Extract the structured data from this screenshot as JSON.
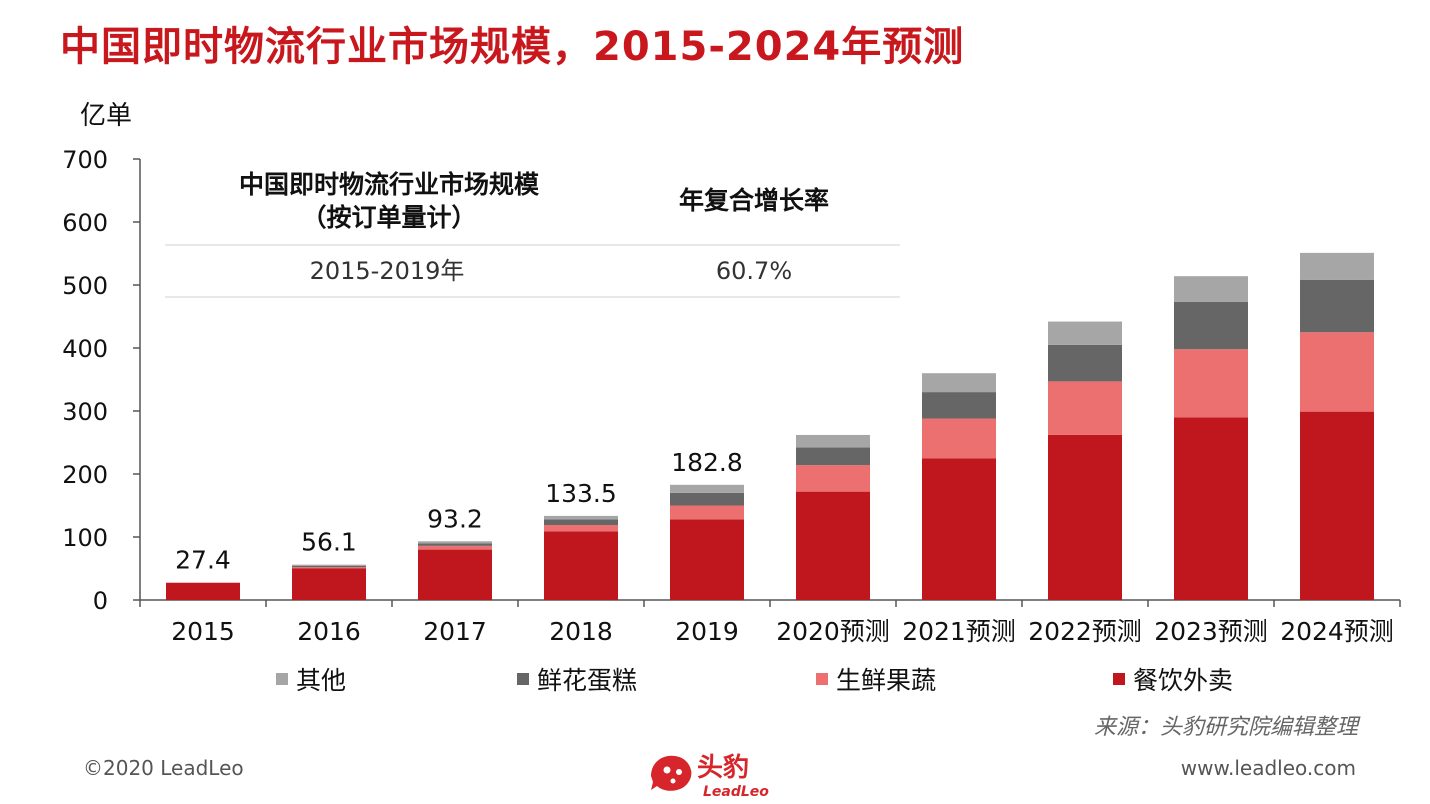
{
  "page": {
    "title": "中国即时物流行业市场规模，2015-2024年预测",
    "source": "来源：头豹研究院编辑整理",
    "copyright": "©2020 LeadLeo",
    "website": "www.leadleo.com",
    "logo": {
      "cn": "头豹",
      "en": "LeadLeo"
    }
  },
  "chart_data": {
    "type": "bar",
    "stacked": true,
    "ylabel": "亿单",
    "ylim": [
      0,
      700
    ],
    "yticks": [
      0,
      100,
      200,
      300,
      400,
      500,
      600,
      700
    ],
    "categories": [
      "2015",
      "2016",
      "2017",
      "2018",
      "2019",
      "2020预测",
      "2021预测",
      "2022预测",
      "2023预测",
      "2024预测"
    ],
    "series": [
      {
        "name": "餐饮外卖",
        "color": "#c0161d",
        "values": [
          27.4,
          50,
          80,
          109,
          128,
          172,
          225,
          262,
          290,
          299
        ]
      },
      {
        "name": "生鲜果蔬",
        "color": "#ec7070",
        "values": [
          0,
          2,
          6,
          10,
          22,
          42,
          63,
          85,
          108,
          126
        ]
      },
      {
        "name": "鲜花蛋糕",
        "color": "#666666",
        "values": [
          0,
          2,
          4,
          9,
          20,
          28,
          42,
          58,
          75,
          83
        ]
      },
      {
        "name": "其他",
        "color": "#a6a6a6",
        "values": [
          0,
          2.1,
          3.2,
          5.5,
          12.8,
          20,
          30,
          37,
          41,
          43
        ]
      }
    ],
    "totals_labels": [
      "27.4",
      "56.1",
      "93.2",
      "133.5",
      "182.8"
    ],
    "legend_order": [
      "其他",
      "鲜花蛋糕",
      "生鲜果蔬",
      "餐饮外卖"
    ],
    "legend_position": "bottom",
    "grid": false,
    "inset_table": {
      "headers": [
        "中国即时物流行业市场规模\n（按订单量计）",
        "年复合增长率"
      ],
      "rows": [
        [
          "2015-2019年",
          "60.7%"
        ]
      ]
    }
  }
}
